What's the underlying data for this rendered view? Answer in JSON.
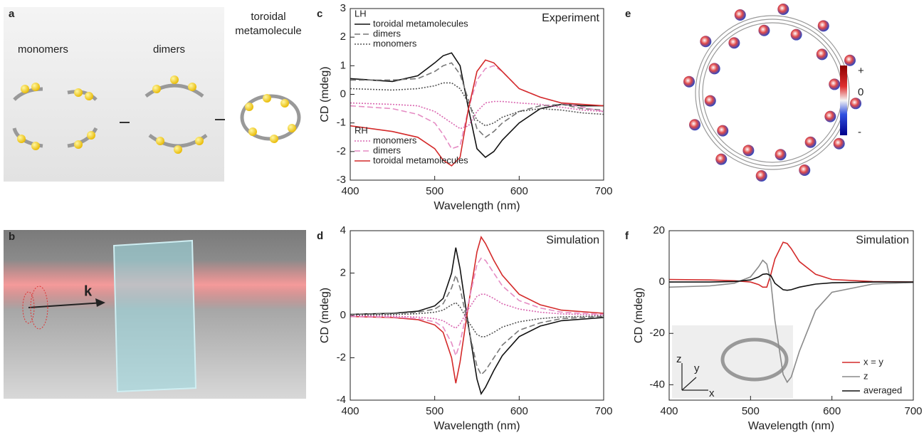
{
  "panels": {
    "a": {
      "label": "a",
      "texts": [
        "monomers",
        "dimers"
      ],
      "toroidal": [
        "toroidal",
        "metamolecule"
      ]
    },
    "b": {
      "label": "b",
      "k": "k"
    },
    "c": {
      "label": "c"
    },
    "d": {
      "label": "d"
    },
    "e": {
      "label": "e",
      "colorbar": [
        "+",
        "0",
        "-"
      ]
    },
    "f": {
      "label": "f",
      "inset_axes": [
        "z",
        "y",
        "x"
      ]
    }
  },
  "chart_data": [
    {
      "type": "line",
      "annotation": "Experiment",
      "xlabel": "Wavelength (nm)",
      "ylabel": "CD (mdeg)",
      "xlim": [
        400,
        700
      ],
      "xticks": [
        400,
        500,
        600,
        700
      ],
      "ylim": [
        -3,
        3
      ],
      "yticks": [
        -3,
        -2,
        -1,
        0,
        1,
        2,
        3
      ],
      "legend_groups": [
        "LH",
        "RH"
      ],
      "x": [
        400,
        450,
        480,
        500,
        510,
        520,
        530,
        540,
        550,
        560,
        570,
        580,
        600,
        625,
        650,
        675,
        700
      ],
      "series": [
        {
          "name": "toroidal metamolecules",
          "group": "LH",
          "color": "#111111",
          "style": "solid",
          "values": [
            0.55,
            0.45,
            0.65,
            1.1,
            1.35,
            1.45,
            1.0,
            -0.5,
            -1.9,
            -2.2,
            -2.0,
            -1.6,
            -1.0,
            -0.5,
            -0.35,
            -0.4,
            -0.4
          ]
        },
        {
          "name": "dimers",
          "group": "LH",
          "color": "#777777",
          "style": "dashed",
          "values": [
            0.5,
            0.5,
            0.55,
            0.8,
            1.0,
            1.1,
            0.7,
            -0.2,
            -1.2,
            -1.5,
            -1.3,
            -1.0,
            -0.6,
            -0.4,
            -0.35,
            -0.5,
            -0.55
          ]
        },
        {
          "name": "monomers",
          "group": "LH",
          "color": "#555555",
          "style": "dotted",
          "values": [
            0.2,
            0.15,
            0.2,
            0.3,
            0.4,
            0.4,
            0.2,
            -0.3,
            -0.9,
            -1.1,
            -1.0,
            -0.8,
            -0.6,
            -0.5,
            -0.55,
            -0.65,
            -0.7
          ]
        },
        {
          "name": "monomers",
          "group": "RH",
          "color": "#d966b0",
          "style": "dotted",
          "values": [
            -0.3,
            -0.35,
            -0.4,
            -0.6,
            -0.8,
            -1.0,
            -1.2,
            -1.1,
            -0.6,
            -0.3,
            -0.25,
            -0.25,
            -0.3,
            -0.35,
            -0.45,
            -0.55,
            -0.6
          ]
        },
        {
          "name": "dimers",
          "group": "RH",
          "color": "#e58cc4",
          "style": "dashed",
          "values": [
            -0.4,
            -0.5,
            -0.7,
            -1.0,
            -1.4,
            -1.9,
            -1.8,
            -0.5,
            0.5,
            0.9,
            1.0,
            0.8,
            0.2,
            -0.1,
            -0.3,
            -0.45,
            -0.6
          ]
        },
        {
          "name": "toroidal metamolecules",
          "group": "RH",
          "color": "#d42a2a",
          "style": "solid",
          "values": [
            -1.1,
            -1.3,
            -1.5,
            -1.9,
            -2.3,
            -2.5,
            -2.2,
            -0.5,
            0.8,
            1.2,
            1.1,
            0.8,
            0.2,
            -0.1,
            -0.3,
            -0.35,
            -0.4
          ]
        }
      ]
    },
    {
      "type": "line",
      "annotation": "Simulation",
      "xlabel": "Wavelength (nm)",
      "ylabel": "CD (mdeg)",
      "xlim": [
        400,
        700
      ],
      "xticks": [
        400,
        500,
        600,
        700
      ],
      "ylim": [
        -4,
        4
      ],
      "yticks": [
        -4,
        -2,
        0,
        2,
        4
      ],
      "x": [
        400,
        450,
        480,
        500,
        510,
        520,
        525,
        530,
        540,
        550,
        555,
        560,
        570,
        580,
        600,
        625,
        650,
        700
      ],
      "series": [
        {
          "color": "#111111",
          "style": "solid",
          "values": [
            0.05,
            0.1,
            0.2,
            0.45,
            0.8,
            2.0,
            3.2,
            2.2,
            -0.5,
            -3.0,
            -3.7,
            -3.4,
            -2.6,
            -1.9,
            -1.0,
            -0.5,
            -0.25,
            -0.1
          ]
        },
        {
          "color": "#d42a2a",
          "style": "solid",
          "values": [
            -0.05,
            -0.1,
            -0.2,
            -0.45,
            -0.8,
            -2.0,
            -3.2,
            -2.2,
            0.5,
            3.0,
            3.7,
            3.4,
            2.6,
            1.9,
            1.0,
            0.5,
            0.25,
            0.1
          ]
        },
        {
          "color": "#777777",
          "style": "dashed",
          "values": [
            0.05,
            0.08,
            0.15,
            0.3,
            0.55,
            1.3,
            1.9,
            1.3,
            -0.6,
            -2.4,
            -2.8,
            -2.6,
            -2.0,
            -1.4,
            -0.7,
            -0.35,
            -0.15,
            -0.05
          ]
        },
        {
          "color": "#e58cc4",
          "style": "dashed",
          "values": [
            -0.05,
            -0.08,
            -0.15,
            -0.3,
            -0.55,
            -1.3,
            -1.9,
            -1.3,
            0.6,
            2.4,
            2.7,
            2.6,
            2.0,
            1.4,
            0.7,
            0.35,
            0.15,
            0.05
          ]
        },
        {
          "color": "#555555",
          "style": "dotted",
          "values": [
            0.02,
            0.04,
            0.08,
            0.15,
            0.25,
            0.5,
            0.6,
            0.4,
            -0.3,
            -0.9,
            -1.0,
            -1.0,
            -0.8,
            -0.55,
            -0.3,
            -0.15,
            -0.07,
            -0.02
          ]
        },
        {
          "color": "#d966b0",
          "style": "dotted",
          "values": [
            -0.02,
            -0.04,
            -0.08,
            -0.15,
            -0.25,
            -0.5,
            -0.6,
            -0.4,
            0.3,
            0.9,
            1.0,
            1.0,
            0.8,
            0.55,
            0.3,
            0.15,
            0.07,
            0.02
          ]
        }
      ]
    },
    {
      "type": "line",
      "annotation": "Simulation",
      "xlabel": "Wavelength (nm)",
      "ylabel": "CD (mdeg)",
      "xlim": [
        400,
        700
      ],
      "xticks": [
        400,
        500,
        600,
        700
      ],
      "ylim": [
        -46,
        20
      ],
      "yticks": [
        -40,
        -20,
        0,
        20
      ],
      "legend": "lower right",
      "x": [
        400,
        450,
        480,
        500,
        510,
        515,
        520,
        525,
        530,
        540,
        545,
        550,
        560,
        580,
        600,
        650,
        700
      ],
      "series": [
        {
          "name": "x = y",
          "color": "#d42a2a",
          "style": "solid",
          "values": [
            1,
            0.8,
            0.5,
            0,
            -1,
            -2,
            -2,
            3,
            9,
            15.5,
            15,
            13,
            8,
            3,
            1,
            0.2,
            0
          ]
        },
        {
          "name": "z",
          "color": "#8a8a8a",
          "style": "solid",
          "values": [
            -2,
            -1.5,
            -0.5,
            2,
            6,
            8.5,
            7,
            0,
            -15,
            -36,
            -39,
            -37,
            -27,
            -11,
            -4,
            -0.8,
            -0.2
          ]
        },
        {
          "name": "averaged",
          "color": "#111111",
          "style": "solid",
          "values": [
            0,
            0,
            0.2,
            0.8,
            2,
            3,
            3.2,
            2.5,
            -0.5,
            -3,
            -3.2,
            -3,
            -2,
            -0.8,
            -0.3,
            0,
            0
          ]
        }
      ]
    }
  ]
}
